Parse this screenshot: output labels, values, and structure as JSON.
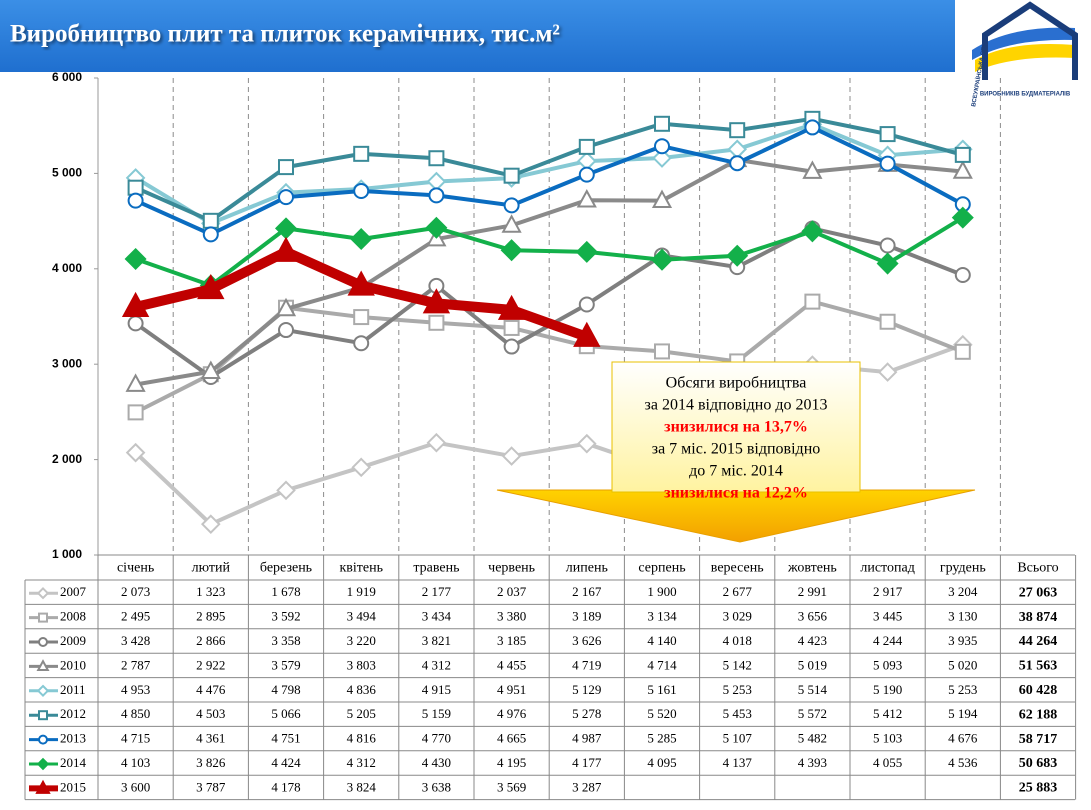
{
  "chart_data": {
    "type": "line",
    "title": "Виробництво плит та плиток керамічних, тис.м²",
    "logo_texts": [
      "ВСЕУКРАЇНСЬКА СПІЛКА",
      "ВИРОБНИКІВ БУДМАТЕРІАЛІВ"
    ],
    "categories": [
      "січень",
      "лютий",
      "березень",
      "квітень",
      "травень",
      "червень",
      "липень",
      "серпень",
      "вересень",
      "жовтень",
      "листопад",
      "грудень"
    ],
    "total_header": "Всього",
    "ylim": [
      1000,
      6000
    ],
    "yticks": [
      {
        "value": 1000,
        "label": "1 000"
      },
      {
        "value": 2000,
        "label": "2 000"
      },
      {
        "value": 3000,
        "label": "3 000"
      },
      {
        "value": 4000,
        "label": "4 000"
      },
      {
        "value": 5000,
        "label": "5 000"
      },
      {
        "value": 6000,
        "label": "6 000"
      }
    ],
    "grid": "x",
    "series": [
      {
        "name": "2007",
        "color": "#c4c4c4",
        "marker": "diamond",
        "marker_filled": false,
        "values": [
          2073,
          1323,
          1678,
          1919,
          2177,
          2037,
          2167,
          1900,
          2677,
          2991,
          2917,
          3204
        ],
        "value_labels": [
          "2 073",
          "1 323",
          "1 678",
          "1 919",
          "2 177",
          "2 037",
          "2 167",
          "1 900",
          "2 677",
          "2 991",
          "2 917",
          "3 204"
        ],
        "total": 27063,
        "total_label": "27 063"
      },
      {
        "name": "2008",
        "color": "#aaaaaa",
        "marker": "square",
        "marker_filled": false,
        "values": [
          2495,
          2895,
          3592,
          3494,
          3434,
          3380,
          3189,
          3134,
          3029,
          3656,
          3445,
          3130
        ],
        "value_labels": [
          "2 495",
          "2 895",
          "3 592",
          "3 494",
          "3 434",
          "3 380",
          "3 189",
          "3 134",
          "3 029",
          "3 656",
          "3 445",
          "3 130"
        ],
        "total": 38874,
        "total_label": "38 874"
      },
      {
        "name": "2009",
        "color": "#7f7f7f",
        "marker": "circle",
        "marker_filled": false,
        "values": [
          3428,
          2866,
          3358,
          3220,
          3821,
          3185,
          3626,
          4140,
          4018,
          4423,
          4244,
          3935
        ],
        "value_labels": [
          "3 428",
          "2 866",
          "3 358",
          "3 220",
          "3 821",
          "3 185",
          "3 626",
          "4 140",
          "4 018",
          "4 423",
          "4 244",
          "3 935"
        ],
        "total": 44264,
        "total_label": "44 264"
      },
      {
        "name": "2010",
        "color": "#8a8a8a",
        "marker": "triangle",
        "marker_filled": false,
        "values": [
          2787,
          2922,
          3579,
          3803,
          4312,
          4455,
          4719,
          4714,
          5142,
          5019,
          5093,
          5020
        ],
        "value_labels": [
          "2 787",
          "2 922",
          "3 579",
          "3 803",
          "4 312",
          "4 455",
          "4 719",
          "4 714",
          "5 142",
          "5 019",
          "5 093",
          "5 020"
        ],
        "total": 51563,
        "total_label": "51 563"
      },
      {
        "name": "2011",
        "color": "#86c9d4",
        "marker": "diamond",
        "marker_filled": false,
        "values": [
          4953,
          4476,
          4798,
          4836,
          4915,
          4951,
          5129,
          5161,
          5253,
          5514,
          5190,
          5253
        ],
        "value_labels": [
          "4 953",
          "4 476",
          "4 798",
          "4 836",
          "4 915",
          "4 951",
          "5 129",
          "5 161",
          "5 253",
          "5 514",
          "5 190",
          "5 253"
        ],
        "total": 60428,
        "total_label": "60 428"
      },
      {
        "name": "2012",
        "color": "#3a8a98",
        "marker": "square",
        "marker_filled": false,
        "values": [
          4850,
          4503,
          5066,
          5205,
          5159,
          4976,
          5278,
          5520,
          5453,
          5572,
          5412,
          5194
        ],
        "value_labels": [
          "4 850",
          "4 503",
          "5 066",
          "5 205",
          "5 159",
          "4 976",
          "5 278",
          "5 520",
          "5 453",
          "5 572",
          "5 412",
          "5 194"
        ],
        "total": 62188,
        "total_label": "62 188"
      },
      {
        "name": "2013",
        "color": "#0a6cc0",
        "marker": "circle",
        "marker_filled": false,
        "values": [
          4715,
          4361,
          4751,
          4816,
          4770,
          4665,
          4987,
          5285,
          5107,
          5482,
          5103,
          4676
        ],
        "value_labels": [
          "4 715",
          "4 361",
          "4 751",
          "4 816",
          "4 770",
          "4 665",
          "4 987",
          "5 285",
          "5 107",
          "5 482",
          "5 103",
          "4 676"
        ],
        "total": 58717,
        "total_label": "58 717"
      },
      {
        "name": "2014",
        "color": "#13b04a",
        "marker": "diamond",
        "marker_filled": true,
        "values": [
          4103,
          3826,
          4424,
          4312,
          4430,
          4195,
          4177,
          4095,
          4137,
          4393,
          4055,
          4536
        ],
        "value_labels": [
          "4 103",
          "3 826",
          "4 424",
          "4 312",
          "4 430",
          "4 195",
          "4 177",
          "4 095",
          "4 137",
          "4 393",
          "4 055",
          "4 536"
        ],
        "total": 50683,
        "total_label": "50 683"
      },
      {
        "name": "2015",
        "color": "#c00000",
        "marker": "triangle",
        "marker_filled": true,
        "values": [
          3600,
          3787,
          4178,
          3824,
          3638,
          3569,
          3287,
          null,
          null,
          null,
          null,
          null
        ],
        "value_labels": [
          "3 600",
          "3 787",
          "4 178",
          "3 824",
          "3 638",
          "3 569",
          "3 287",
          null,
          null,
          null,
          null,
          null
        ],
        "total": 25883,
        "total_label": "25 883"
      }
    ],
    "annotation": [
      {
        "text": "Обсяги виробництва",
        "color": "#000000"
      },
      {
        "text": "за 2014 відповідно до 2013",
        "color": "#000000"
      },
      {
        "text": "знизилися на 13,7%",
        "color": "#ff0000"
      },
      {
        "text": "за 7 міс. 2015 відповідно",
        "color": "#000000"
      },
      {
        "text": "до 7 міс. 2014",
        "color": "#000000"
      },
      {
        "text": "знизилися на 12,2%",
        "color": "#ff0000"
      }
    ]
  }
}
